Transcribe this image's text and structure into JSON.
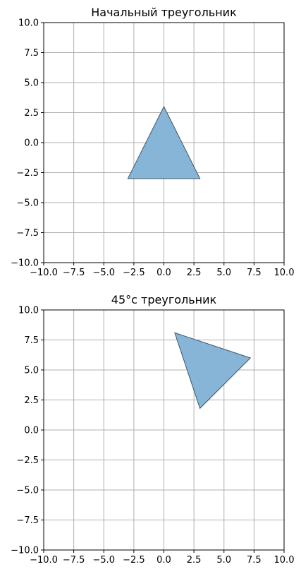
{
  "chart_data": [
    {
      "type": "polygon",
      "title": "Начальный треугольник",
      "xlabel": "",
      "ylabel": "",
      "xlim": [
        -10,
        10
      ],
      "ylim": [
        -10,
        10
      ],
      "xticks": [
        -10,
        -7.5,
        -5,
        -2.5,
        0,
        2.5,
        5,
        7.5,
        10
      ],
      "yticks": [
        -10,
        -7.5,
        -5,
        -2.5,
        0,
        2.5,
        5,
        7.5,
        10
      ],
      "xtick_labels": [
        "−10.0",
        "−7.5",
        "−5.0",
        "−2.5",
        "0.0",
        "2.5",
        "5.0",
        "7.5",
        "10.0"
      ],
      "ytick_labels": [
        "−10.0",
        "−7.5",
        "−5.0",
        "−2.5",
        "0.0",
        "2.5",
        "5.0",
        "7.5",
        "10.0"
      ],
      "grid": true,
      "fill_color": "#87b5d8",
      "edge_color": "#3f5566",
      "points": [
        [
          0,
          3
        ],
        [
          3,
          -3
        ],
        [
          -3,
          -3
        ]
      ]
    },
    {
      "type": "polygon",
      "title": "45°с треугольник",
      "xlabel": "",
      "ylabel": "",
      "xlim": [
        -10,
        10
      ],
      "ylim": [
        -10,
        10
      ],
      "xticks": [
        -10,
        -7.5,
        -5,
        -2.5,
        0,
        2.5,
        5,
        7.5,
        10
      ],
      "yticks": [
        -10,
        -7.5,
        -5,
        -2.5,
        0,
        2.5,
        5,
        7.5,
        10
      ],
      "xtick_labels": [
        "−10.0",
        "−7.5",
        "−5.0",
        "−2.5",
        "0.0",
        "2.5",
        "5.0",
        "7.5",
        "10.0"
      ],
      "ytick_labels": [
        "−10.0",
        "−7.5",
        "−5.0",
        "−2.5",
        "0.0",
        "2.5",
        "5.0",
        "7.5",
        "10.0"
      ],
      "grid": true,
      "fill_color": "#87b5d8",
      "edge_color": "#3f5566",
      "points": [
        [
          0.9,
          8.1
        ],
        [
          7.2,
          6.0
        ],
        [
          3.0,
          1.8
        ]
      ]
    }
  ]
}
